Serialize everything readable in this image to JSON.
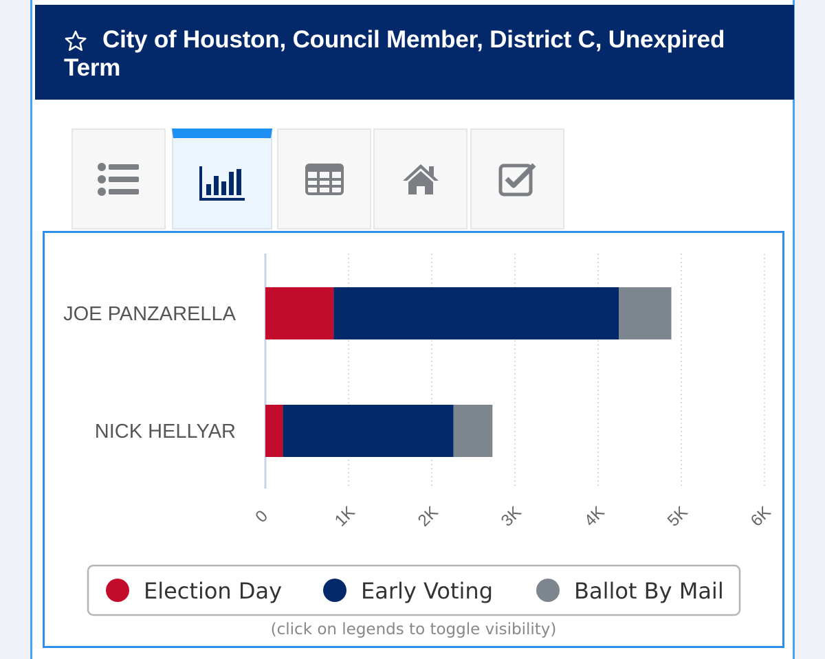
{
  "header": {
    "title": "City of Houston, Council Member, District C, Unexpired Term",
    "star_icon": "star-outline-icon"
  },
  "tabs": [
    {
      "icon": "list-icon",
      "active": false
    },
    {
      "icon": "bar-chart-icon",
      "active": true
    },
    {
      "icon": "table-icon",
      "active": false
    },
    {
      "icon": "home-icon",
      "active": false
    },
    {
      "icon": "checkbox-icon",
      "active": false
    }
  ],
  "colors": {
    "header_bg": "#03296b",
    "active_tab_accent": "#1e90f5",
    "election_day": "#c30c2c",
    "early_voting": "#03296b",
    "ballot_by_mail": "#7d868f"
  },
  "chart_data": {
    "type": "bar",
    "orientation": "horizontal",
    "stacked": true,
    "categories": [
      "JOE PANZARELLA",
      "NICK HELLYAR"
    ],
    "series": [
      {
        "name": "Election Day",
        "color": "#c30c2c",
        "values": [
          820,
          210
        ]
      },
      {
        "name": "Early Voting",
        "color": "#03296b",
        "values": [
          3430,
          2050
        ]
      },
      {
        "name": "Ballot By Mail",
        "color": "#7d868f",
        "values": [
          630,
          470
        ]
      }
    ],
    "xlim": [
      0,
      6000
    ],
    "xticks": [
      "0",
      "1K",
      "2K",
      "3K",
      "4K",
      "5K",
      "6K"
    ],
    "grid": true,
    "legend_position": "bottom"
  },
  "legend_hint": "(click on legends to toggle visibility)"
}
